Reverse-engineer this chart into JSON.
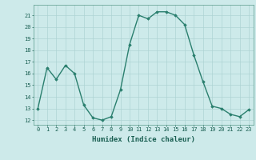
{
  "x": [
    0,
    1,
    2,
    3,
    4,
    5,
    6,
    7,
    8,
    9,
    10,
    11,
    12,
    13,
    14,
    15,
    16,
    17,
    18,
    19,
    20,
    21,
    22,
    23
  ],
  "y": [
    13,
    16.5,
    15.5,
    16.7,
    16.0,
    13.3,
    12.2,
    12.0,
    12.3,
    14.6,
    18.5,
    21.0,
    20.7,
    21.3,
    21.3,
    21.0,
    20.2,
    17.6,
    15.3,
    13.2,
    13.0,
    12.5,
    12.3,
    12.9
  ],
  "line_color": "#2a7f6e",
  "marker": "D",
  "marker_size": 1.8,
  "background_color": "#cdeaea",
  "grid_color": "#aed4d4",
  "xlabel": "Humidex (Indice chaleur)",
  "ylim": [
    11.6,
    21.9
  ],
  "xlim": [
    -0.5,
    23.5
  ],
  "yticks": [
    12,
    13,
    14,
    15,
    16,
    17,
    18,
    19,
    20,
    21
  ],
  "xticks": [
    0,
    1,
    2,
    3,
    4,
    5,
    6,
    7,
    8,
    9,
    10,
    11,
    12,
    13,
    14,
    15,
    16,
    17,
    18,
    19,
    20,
    21,
    22,
    23
  ],
  "tick_fontsize": 5.0,
  "label_fontsize": 6.5,
  "line_width": 1.0
}
